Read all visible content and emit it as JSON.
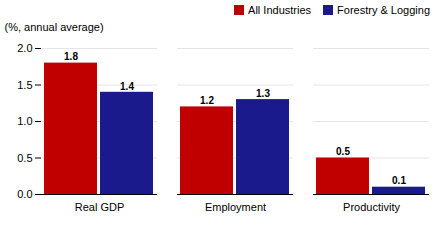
{
  "chart_data": {
    "type": "bar",
    "categories": [
      "Real GDP",
      "Employment",
      "Productivity"
    ],
    "series": [
      {
        "name": "All Industries",
        "color": "#c00000",
        "values": [
          1.8,
          1.2,
          0.5
        ]
      },
      {
        "name": "Forestry & Logging",
        "color": "#1a1a8c",
        "values": [
          1.4,
          1.3,
          0.1
        ]
      }
    ],
    "ylabel": "(%, annual average)",
    "ylim": [
      0,
      2.0
    ],
    "yticks": [
      {
        "value": 0.0,
        "label": "0.0"
      },
      0.5,
      {
        "value": 1.0,
        "label": "1.0"
      },
      1.5,
      {
        "value": 2.0,
        "label": "2.0"
      }
    ],
    "grid": true,
    "legend": "upper right",
    "data_labels": true
  }
}
